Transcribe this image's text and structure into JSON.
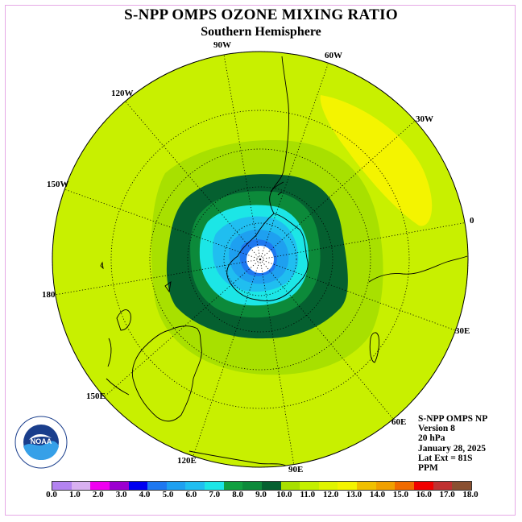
{
  "title": "S-NPP OMPS OZONE MIXING RATIO",
  "subtitle": "Southern Hemisphere",
  "longitude_labels": {
    "w90": "90W",
    "w60": "60W",
    "w30": "30W",
    "w120": "120W",
    "w150": "150W",
    "e0": "0",
    "e180": "180",
    "e30": "30E",
    "e150": "150E",
    "e60": "60E",
    "e120": "120E",
    "e90": "90E"
  },
  "info": {
    "instrument": "S-NPP OMPS NP",
    "version": "Version 8",
    "level": "20 hPa",
    "date": "January 28, 2025",
    "lat_ext": "Lat Ext = 81S",
    "units": "PPM"
  },
  "colorbar": {
    "colors": [
      "#b383f0",
      "#d8b0f0",
      "#f000f0",
      "#9c00d0",
      "#0000f0",
      "#1e78f0",
      "#1ea0f0",
      "#20bef0",
      "#1ce6e6",
      "#10a040",
      "#0c8a3a",
      "#056030",
      "#a8e000",
      "#c4f000",
      "#e0f400",
      "#f4f400",
      "#f0c000",
      "#f0a000",
      "#f06a00",
      "#f00000",
      "#c03030",
      "#8a5030"
    ],
    "ticks": [
      "0.0",
      "1.0",
      "2.0",
      "3.0",
      "4.0",
      "5.0",
      "6.0",
      "7.0",
      "8.0",
      "9.0",
      "10.0",
      "11.0",
      "12.0",
      "13.0",
      "14.0",
      "15.0",
      "16.0",
      "17.0",
      "18.0"
    ]
  },
  "logo": {
    "text": "NOAA"
  }
}
